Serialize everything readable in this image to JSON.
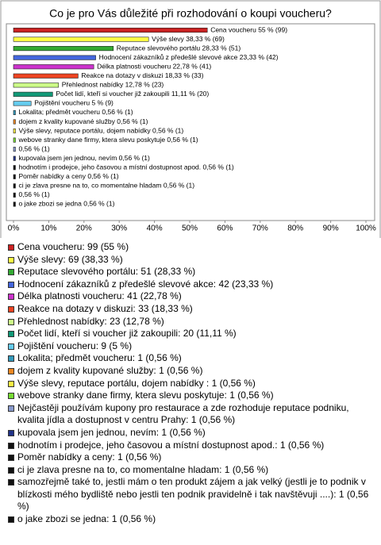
{
  "chart_data": {
    "type": "bar",
    "orientation": "horizontal",
    "title": "Co je pro Vás důležité při rozhodování o koupi voucheru?",
    "values": [
      55,
      38.33,
      28.33,
      23.33,
      22.78,
      18.33,
      12.78,
      11.11,
      5,
      0.56,
      0.56,
      0.56,
      0.56,
      0.56,
      0.56,
      0.56,
      0.56,
      0.56,
      0.56,
      0.56
    ],
    "value_labels": [
      "Cena voucheru 55 % (99)",
      "Výše slevy 38,33 % (69)",
      "Reputace slevového portálu 28,33 % (51)",
      "Hodnocení zákazníků z předešlé slevové akce 23,33 % (42)",
      "Délka platnosti voucheru 22,78 % (41)",
      "Reakce na dotazy v diskuzi 18,33 % (33)",
      "Přehlednost nabídky 12,78 % (23)",
      "Počet lidí, kteří si voucher již zakoupili 11,11 % (20)",
      "Pojištění voucheru 5 % (9)",
      "Lokalita; předmět voucheru 0,56 % (1)",
      "dojem z kvality kupované služby 0,56 % (1)",
      "Výše slevy, reputace portálu, dojem nabídky  0,56 % (1)",
      "webove stranky dane firmy, ktera slevu poskytuje 0,56 % (1)",
      "0,56 % (1)",
      "kupovala jsem jen jednou, nevím 0,56 % (1)",
      "hodnotím i prodejce, jeho časovou a místní dostupnost apod. 0,56 % (1)",
      "Poměr nabídky a ceny 0,56 % (1)",
      "ci je zlava presne na to, co momentalne hladam 0,56 % (1)",
      "0,56 % (1)",
      "o jake zbozi se jedna 0,56 % (1)"
    ],
    "legend": [
      "Cena voucheru: 99 (55 %)",
      "Výše slevy: 69 (38,33 %)",
      "Reputace slevového portálu: 51 (28,33 %)",
      "Hodnocení zákazníků z předešlé slevové akce: 42 (23,33 %)",
      "Délka platnosti voucheru: 41 (22,78 %)",
      "Reakce na dotazy v diskuzi: 33 (18,33 %)",
      "Přehlednost nabídky: 23 (12,78 %)",
      "Počet lidí, kteří si voucher již zakoupili: 20 (11,11 %)",
      "Pojištění voucheru: 9 (5 %)",
      "Lokalita; předmět voucheru: 1 (0,56 %)",
      "dojem z kvality kupované služby: 1 (0,56 %)",
      "Výše slevy, reputace portálu, dojem nabídky : 1 (0,56 %)",
      "webove stranky dane firmy, ktera slevu poskytuje: 1 (0,56 %)",
      "Nejčastěji používám kupony pro restaurace a zde rozhoduje reputace podniku, kvalita jídla a dostupnost v centru Prahy: 1 (0,56 %)",
      "kupovala jsem jen jednou, nevím: 1 (0,56 %)",
      "hodnotím i prodejce, jeho časovou a místní dostupnost apod.: 1 (0,56 %)",
      "Poměr nabídky a ceny: 1 (0,56 %)",
      "ci je zlava presne na to, co momentalne hladam: 1 (0,56 %)",
      "samozřejmě také to, jestli mám o ten produkt zájem a jak velký (jestli je to podnik v blízkosti mého bydliště nebo jestli ten podnik pravidelně i tak navštěvuji ....): 1 (0,56 %)",
      "o jake zbozi se jedna: 1 (0,56 %)"
    ],
    "colors": [
      "#cc2222",
      "#ffff44",
      "#33aa33",
      "#4466dd",
      "#cc33cc",
      "#ee4422",
      "#ccff88",
      "#119977",
      "#66ccee",
      "#3399bb",
      "#ee8822",
      "#ffee44",
      "#77dd33",
      "#8899cc",
      "#223388",
      "#111111",
      "#111111",
      "#111111",
      "#111111",
      "#111111"
    ],
    "xlim": [
      0,
      100
    ],
    "xticks": [
      {
        "value": 0,
        "label": "0%"
      },
      {
        "value": 10,
        "label": "10%"
      },
      {
        "value": 20,
        "label": "20%"
      },
      {
        "value": 30,
        "label": "30%"
      },
      {
        "value": 40,
        "label": "40%"
      },
      {
        "value": 50,
        "label": "50%"
      },
      {
        "value": 60,
        "label": "60%"
      },
      {
        "value": 70,
        "label": "70%"
      },
      {
        "value": 80,
        "label": "80%"
      },
      {
        "value": 90,
        "label": "90%"
      },
      {
        "value": 100,
        "label": "100%"
      }
    ]
  }
}
